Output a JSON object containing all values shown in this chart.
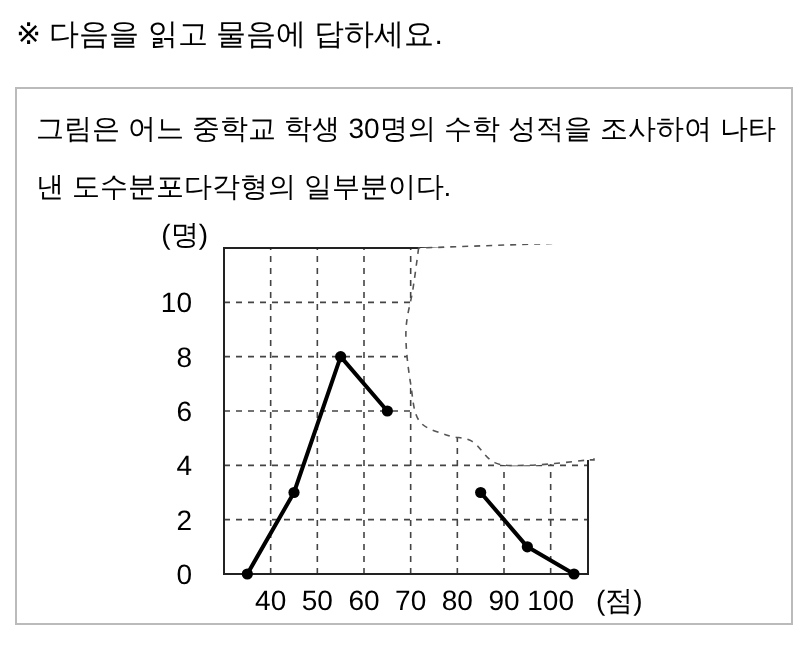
{
  "chart_data": {
    "type": "line",
    "title": "※ 다음을 읽고 물음에 답하세요.",
    "subtitle": "그림은 어느 중학교 학생 30명의 수학 성적을 조사하여 나타낸 도수분포다각형의 일부분이다.",
    "xlabel": "(점)",
    "ylabel": "(명)",
    "x": [
      35,
      45,
      55,
      65,
      75,
      85,
      95,
      105
    ],
    "series": [
      {
        "color": "#000000",
        "values": [
          0,
          3,
          8,
          6,
          null,
          3,
          1,
          0
        ]
      }
    ],
    "xlim": [
      30,
      108
    ],
    "xticks": [
      40,
      50,
      60,
      70,
      80,
      90,
      100
    ],
    "ylim": [
      0,
      12
    ],
    "yticks": [
      0,
      2,
      4,
      6,
      8,
      10
    ],
    "grid": true,
    "marker": "circle",
    "line_style": "solid"
  }
}
